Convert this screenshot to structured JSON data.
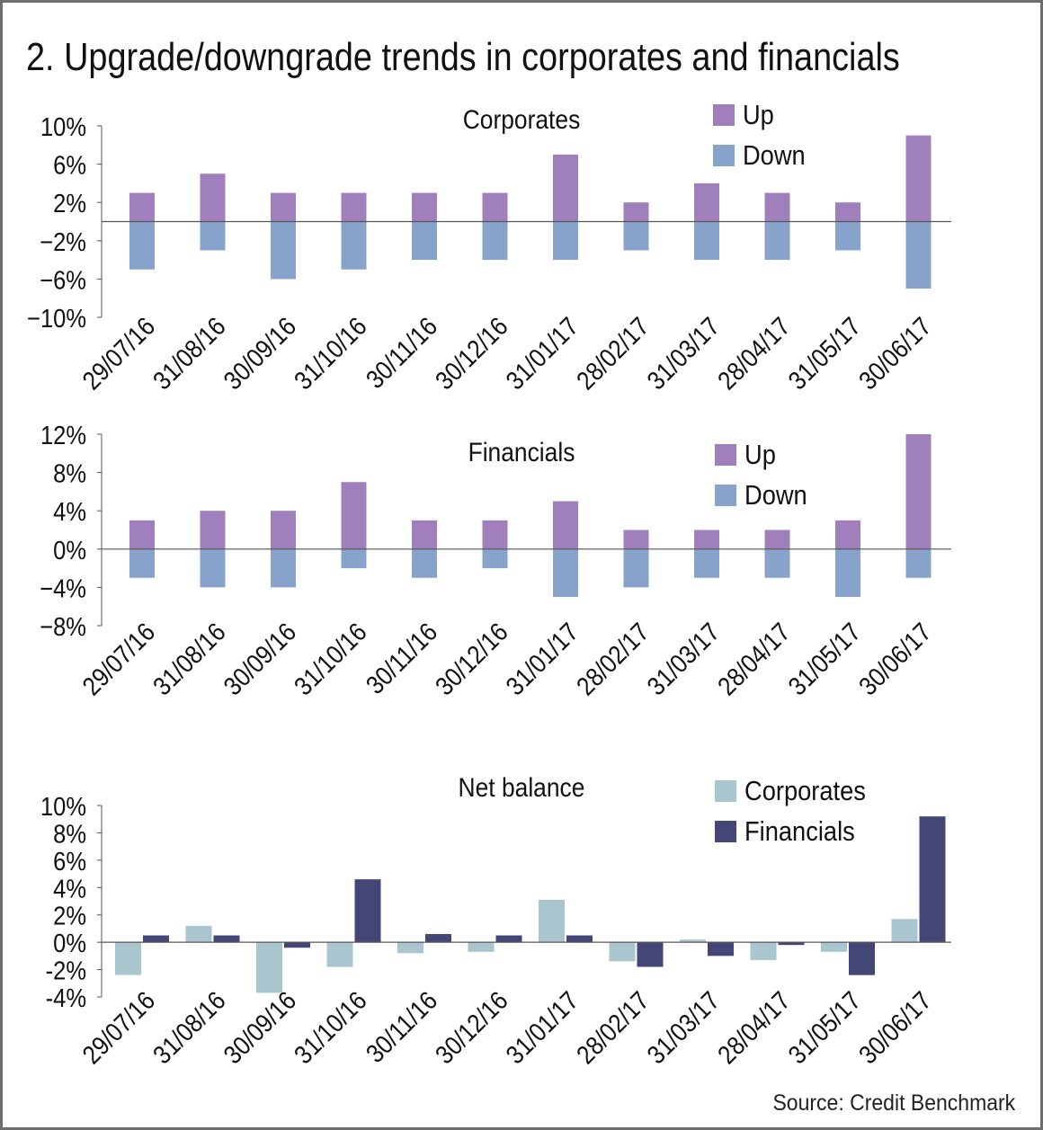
{
  "title": "2. Upgrade/downgrade trends in corporates and financials",
  "source": "Source: Credit Benchmark",
  "colors": {
    "up": "#a07fbd",
    "down": "#87a3cb",
    "net_corporates": "#a9c6cf",
    "net_financials": "#434677"
  },
  "chart_data": [
    {
      "type": "bar",
      "title": "Corporates",
      "categories": [
        "29/07/16",
        "31/08/16",
        "30/09/16",
        "31/10/16",
        "30/11/16",
        "30/12/16",
        "31/01/17",
        "28/02/17",
        "31/03/17",
        "28/04/17",
        "31/05/17",
        "30/06/17"
      ],
      "series": [
        {
          "name": "Up",
          "values": [
            3,
            5,
            3,
            3,
            3,
            3,
            7,
            2,
            4,
            3,
            2,
            9
          ]
        },
        {
          "name": "Down",
          "values": [
            -5,
            -3,
            -6,
            -5,
            -4,
            -4,
            -4,
            -3,
            -4,
            -4,
            -3,
            -7
          ]
        }
      ],
      "ylim": [
        -10,
        10
      ],
      "yticks": [
        "10%",
        "6%",
        "2%",
        "−2%",
        "−6%",
        "−10%"
      ],
      "ytick_values": [
        10,
        6,
        2,
        -2,
        -6,
        -10
      ],
      "stacked": true,
      "legend": "top-right",
      "grid": false
    },
    {
      "type": "bar",
      "title": "Financials",
      "categories": [
        "29/07/16",
        "31/08/16",
        "30/09/16",
        "31/10/16",
        "30/11/16",
        "30/12/16",
        "31/01/17",
        "28/02/17",
        "31/03/17",
        "28/04/17",
        "31/05/17",
        "30/06/17"
      ],
      "series": [
        {
          "name": "Up",
          "values": [
            3,
            4,
            4,
            7,
            3,
            3,
            5,
            2,
            2,
            2,
            3,
            12
          ]
        },
        {
          "name": "Down",
          "values": [
            -3,
            -4,
            -4,
            -2,
            -3,
            -2,
            -5,
            -4,
            -3,
            -3,
            -5,
            -3
          ]
        }
      ],
      "ylim": [
        -8,
        12
      ],
      "yticks": [
        "12%",
        "8%",
        "4%",
        "0%",
        "−4%",
        "−8%"
      ],
      "ytick_values": [
        12,
        8,
        4,
        0,
        -4,
        -8
      ],
      "stacked": true,
      "legend": "top-right",
      "grid": false
    },
    {
      "type": "bar",
      "title": "Net balance",
      "categories": [
        "29/07/16",
        "31/08/16",
        "30/09/16",
        "31/10/16",
        "30/11/16",
        "30/12/16",
        "31/01/17",
        "28/02/17",
        "31/03/17",
        "28/04/17",
        "31/05/17",
        "30/06/17"
      ],
      "series": [
        {
          "name": "Corporates",
          "values": [
            -2.4,
            1.2,
            -3.7,
            -1.8,
            -0.8,
            -0.7,
            3.1,
            -1.4,
            0.2,
            -1.3,
            -0.7,
            1.7
          ]
        },
        {
          "name": "Financials",
          "values": [
            0.5,
            0.5,
            -0.4,
            4.6,
            0.6,
            0.5,
            0.5,
            -1.8,
            -1.0,
            -0.2,
            -2.4,
            9.2
          ]
        }
      ],
      "ylim": [
        -4,
        10
      ],
      "yticks": [
        "10%",
        "8%",
        "6%",
        "4%",
        "2%",
        "0%",
        "-2%",
        "-4%"
      ],
      "ytick_values": [
        10,
        8,
        6,
        4,
        2,
        0,
        -2,
        -4
      ],
      "stacked": false,
      "legend": "top-right",
      "grid": false
    }
  ]
}
